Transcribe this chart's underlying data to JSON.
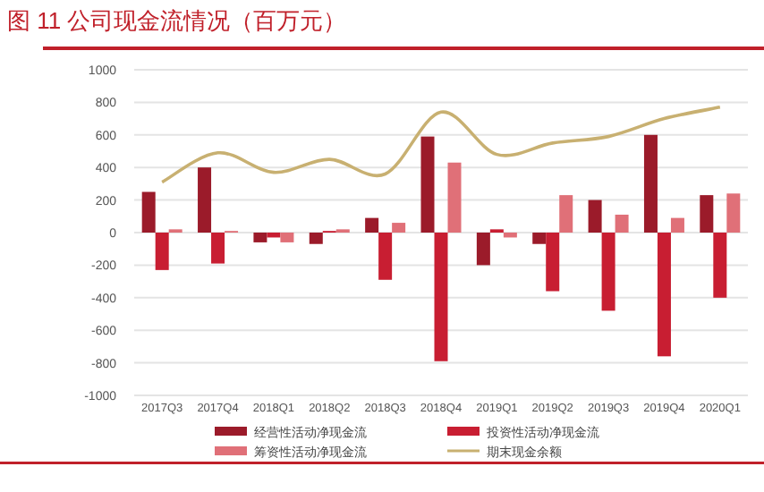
{
  "chart_data": {
    "type": "bar",
    "title": "图 11    公司现金流情况（百万元）",
    "categories": [
      "2017Q3",
      "2017Q4",
      "2018Q1",
      "2018Q2",
      "2018Q3",
      "2018Q4",
      "2019Q1",
      "2019Q2",
      "2019Q3",
      "2019Q4",
      "2020Q1"
    ],
    "series": [
      {
        "name": "经营性活动净现金流",
        "color": "#9b1b2a",
        "values": [
          250,
          400,
          -60,
          -70,
          90,
          590,
          -200,
          -70,
          200,
          600,
          230
        ]
      },
      {
        "name": "投资性活动净现金流",
        "color": "#c81e32",
        "values": [
          -230,
          -190,
          -30,
          10,
          -290,
          -790,
          20,
          -360,
          -480,
          -760,
          -400
        ]
      },
      {
        "name": "筹资性活动净现金流",
        "color": "#e07078",
        "values": [
          20,
          10,
          -60,
          20,
          60,
          430,
          -30,
          230,
          110,
          90,
          240
        ]
      },
      {
        "name": "期末现金余额",
        "type": "line",
        "color": "#c8b071",
        "values": [
          310,
          490,
          370,
          450,
          360,
          740,
          480,
          550,
          590,
          700,
          770
        ]
      }
    ],
    "ylim": [
      -1000,
      1000
    ],
    "yticks": [
      -1000,
      -800,
      -600,
      -400,
      -200,
      0,
      200,
      400,
      600,
      800,
      1000
    ],
    "grid": "y",
    "legend": "bottom"
  }
}
